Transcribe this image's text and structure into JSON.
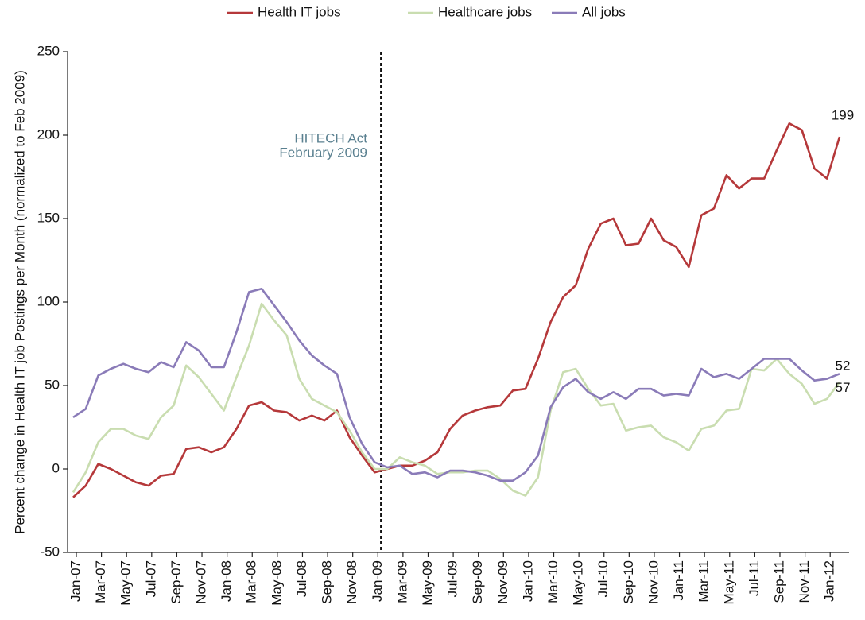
{
  "chart_data": {
    "type": "line",
    "y_label": "Percent change in Health IT job Postings per Month (normalized to Feb 2009)",
    "annotations": [
      "HITECH Act",
      "February 2009"
    ],
    "categories": [
      "Jan-07",
      null,
      "Mar-07",
      null,
      "May-07",
      null,
      "Jul-07",
      null,
      "Sep-07",
      null,
      "Nov-07",
      null,
      "Jan-08",
      null,
      "Mar-08",
      null,
      "May-08",
      null,
      "Jul-08",
      null,
      "Sep-08",
      null,
      "Nov-08",
      null,
      "Jan-09",
      null,
      "Mar-09",
      null,
      "May-09",
      null,
      "Jul-09",
      null,
      "Sep-09",
      null,
      "Nov-09",
      null,
      "Jan-10",
      null,
      "Mar-10",
      null,
      "May-10",
      null,
      "Jul-10",
      null,
      "Sep-10",
      null,
      "Nov-10",
      null,
      "Jan-11",
      null,
      "Mar-11",
      null,
      "May-11",
      null,
      "Jul-11",
      null,
      "Sep-11",
      null,
      "Nov-11",
      null,
      "Jan-12",
      null
    ],
    "series": [
      {
        "name": "Health IT jobs",
        "color": "#b5383a",
        "values": [
          -17,
          -10,
          3,
          0,
          -4,
          -8,
          -10,
          -4,
          -3,
          12,
          13,
          10,
          13,
          24,
          38,
          40,
          35,
          34,
          29,
          32,
          29,
          35,
          19,
          8,
          -2,
          0,
          2,
          2,
          5,
          10,
          24,
          32,
          35,
          37,
          38,
          47,
          48,
          66,
          88,
          103,
          110,
          132,
          147,
          150,
          134,
          135,
          150,
          137,
          133,
          121,
          152,
          156,
          176,
          168,
          174,
          174,
          191,
          207,
          203,
          180,
          174,
          199
        ]
      },
      {
        "name": "Healthcare jobs",
        "color": "#c9ddb0",
        "values": [
          -14,
          -2,
          16,
          24,
          24,
          20,
          18,
          31,
          38,
          62,
          55,
          45,
          35,
          55,
          74,
          99,
          89,
          80,
          54,
          42,
          38,
          34,
          23,
          10,
          0,
          0,
          7,
          4,
          2,
          -3,
          -2,
          -2,
          -1,
          -1,
          -6,
          -13,
          -16,
          -5,
          35,
          58,
          60,
          48,
          38,
          39,
          23,
          25,
          26,
          19,
          16,
          11,
          24,
          26,
          35,
          36,
          60,
          59,
          66,
          57,
          51,
          39,
          42,
          52
        ]
      },
      {
        "name": "All jobs",
        "color": "#8a7bb8",
        "values": [
          31,
          36,
          56,
          60,
          63,
          60,
          58,
          64,
          61,
          76,
          71,
          61,
          61,
          82,
          106,
          108,
          98,
          88,
          77,
          68,
          62,
          57,
          31,
          15,
          4,
          1,
          2,
          -3,
          -2,
          -5,
          -1,
          -1,
          -2,
          -4,
          -7,
          -7,
          -2,
          8,
          37,
          49,
          54,
          46,
          42,
          46,
          42,
          48,
          48,
          44,
          45,
          44,
          60,
          55,
          57,
          54,
          60,
          66,
          66,
          66,
          59,
          53,
          54,
          57
        ]
      }
    ],
    "ylim": [
      -50,
      250
    ],
    "yticks": [
      -50,
      0,
      50,
      100,
      150,
      200,
      250
    ],
    "legend": "top"
  }
}
